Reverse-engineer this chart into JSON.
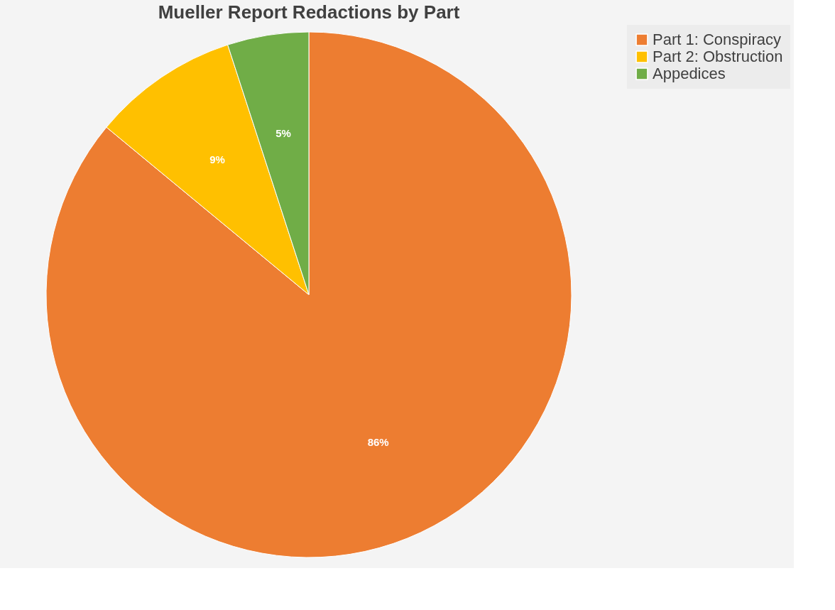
{
  "chart_data": {
    "type": "pie",
    "title": "Mueller Report Redactions by Part",
    "categories": [
      "Part 1: Conspiracy",
      "Part 2: Obstruction",
      "Appedices"
    ],
    "values": [
      86,
      9,
      5
    ],
    "colors": [
      "#ed7d31",
      "#ffc000",
      "#70ad47"
    ],
    "value_labels": [
      "86%",
      "9%",
      "5%"
    ],
    "legend": "right"
  }
}
